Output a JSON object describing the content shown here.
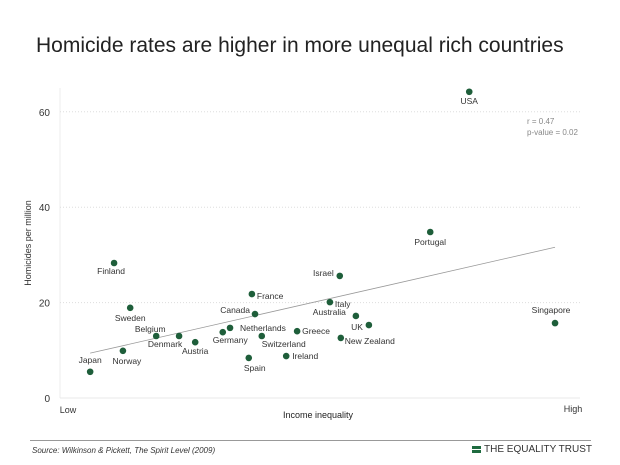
{
  "chart_data": {
    "type": "scatter",
    "title": "Homicide rates are higher in more unequal rich countries",
    "xlabel": "Income inequality",
    "ylabel": "Homicides per million",
    "x_tick_labels": [
      "Low",
      "High"
    ],
    "xlim": [
      0,
      100
    ],
    "ylim": [
      0,
      66
    ],
    "yticks": [
      0,
      20,
      40,
      60
    ],
    "grid": "horizontal dotted",
    "point_color": "#1e5e3a",
    "annotation": [
      "r = 0.47",
      "p-value = 0.02"
    ],
    "trendline": {
      "x": [
        5.8,
        95.2
      ],
      "y": [
        9.4,
        31.6
      ]
    },
    "points": [
      {
        "label": "Japan",
        "x": 5.8,
        "y": 5.5
      },
      {
        "label": "Norway",
        "x": 12.1,
        "y": 9.9
      },
      {
        "label": "Finland",
        "x": 10.4,
        "y": 28.3
      },
      {
        "label": "Sweden",
        "x": 13.5,
        "y": 18.9
      },
      {
        "label": "Belgium",
        "x": 18.5,
        "y": 13.0
      },
      {
        "label": "Denmark",
        "x": 22.9,
        "y": 13.0
      },
      {
        "label": "Austria",
        "x": 26.0,
        "y": 11.7
      },
      {
        "label": "Germany",
        "x": 31.3,
        "y": 13.8
      },
      {
        "label": "Netherlands",
        "x": 32.7,
        "y": 14.7
      },
      {
        "label": "Canada",
        "x": 37.5,
        "y": 17.6
      },
      {
        "label": "France",
        "x": 36.9,
        "y": 21.8
      },
      {
        "label": "Spain",
        "x": 36.3,
        "y": 8.4
      },
      {
        "label": "Switzerland",
        "x": 38.8,
        "y": 13.0
      },
      {
        "label": "Ireland",
        "x": 43.5,
        "y": 8.8
      },
      {
        "label": "Greece",
        "x": 45.6,
        "y": 14.0
      },
      {
        "label": "Israel",
        "x": 53.8,
        "y": 25.6
      },
      {
        "label": "Italy",
        "x": 51.9,
        "y": 20.1
      },
      {
        "label": "Australia",
        "x": 56.9,
        "y": 17.2
      },
      {
        "label": "UK",
        "x": 59.4,
        "y": 15.3
      },
      {
        "label": "New Zealand",
        "x": 54.0,
        "y": 12.6
      },
      {
        "label": "Portugal",
        "x": 71.2,
        "y": 34.8
      },
      {
        "label": "Singapore",
        "x": 95.2,
        "y": 15.7
      },
      {
        "label": "USA",
        "x": 78.7,
        "y": 64.2
      }
    ]
  },
  "footer": {
    "source": "Source: Wilkinson & Pickett, The Spirit Level (2009)",
    "logo": "THE EQUALITY TRUST"
  }
}
